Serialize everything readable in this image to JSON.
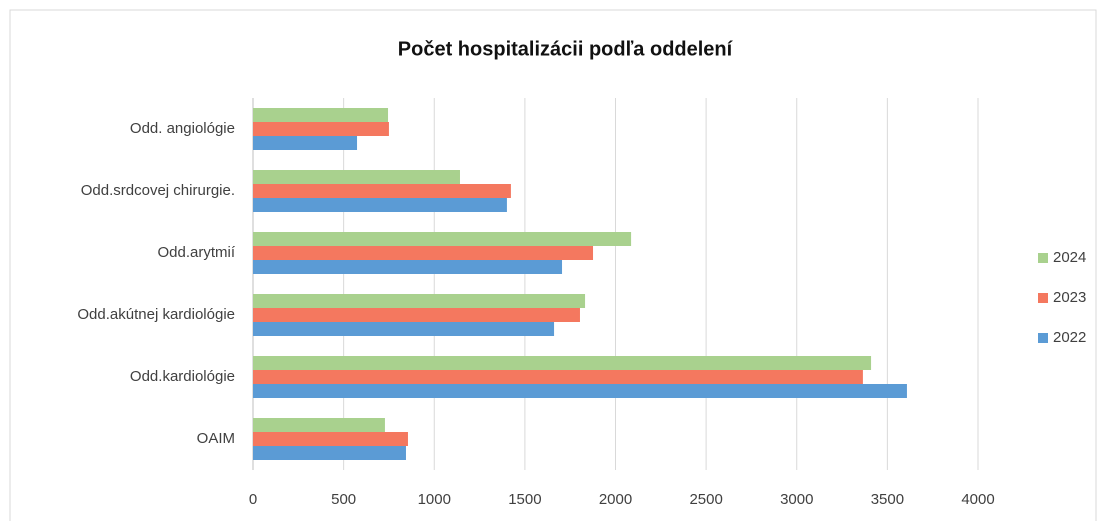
{
  "chart_data": {
    "type": "hbar",
    "title": "Počet hospitalizácii podľa oddelení",
    "categories": [
      "Odd. angiológie",
      "Odd.srdcovej chirurgie.",
      "Odd.arytmií",
      "Odd.akútnej kardiológie",
      "Odd.kardiológie",
      "OAIM"
    ],
    "series": [
      {
        "name": "2024",
        "color": "#a9d18e",
        "values": [
          745,
          1142,
          2086,
          1832,
          3410,
          728
        ]
      },
      {
        "name": "2023",
        "color": "#f4785f",
        "values": [
          750,
          1423,
          1876,
          1804,
          3365,
          855
        ]
      },
      {
        "name": "2022",
        "color": "#5b9bd5",
        "values": [
          574,
          1401,
          1705,
          1661,
          3608,
          844
        ]
      }
    ],
    "xlim": [
      0,
      4000
    ],
    "xticks": [
      0,
      500,
      1000,
      1500,
      2000,
      2500,
      3000,
      3500,
      4000
    ],
    "grid": true,
    "legend": "right"
  }
}
